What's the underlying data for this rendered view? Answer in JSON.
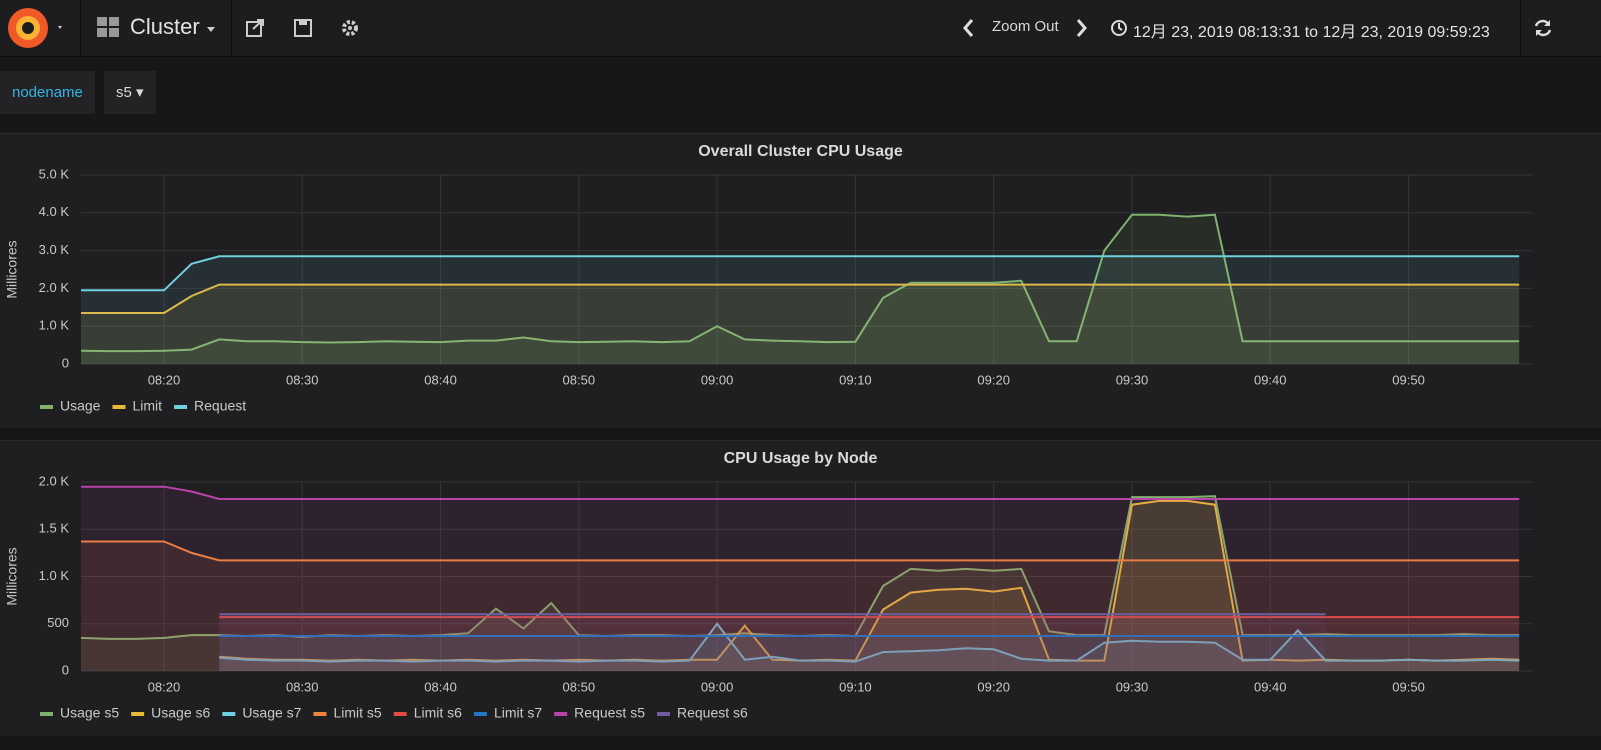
{
  "header": {
    "dashboard": "Cluster",
    "zoom": "Zoom Out",
    "time_range": "12月 23, 2019 08:13:31 to 12月 23, 2019 09:59:23"
  },
  "variables": {
    "label": "nodename",
    "value": "s5"
  },
  "chart_data": [
    {
      "type": "line",
      "title": "Overall Cluster CPU Usage",
      "ylabel": "Millicores",
      "x": [
        "08:14",
        "08:16",
        "08:18",
        "08:20",
        "08:22",
        "08:24",
        "08:26",
        "08:28",
        "08:30",
        "08:32",
        "08:34",
        "08:36",
        "08:38",
        "08:40",
        "08:42",
        "08:44",
        "08:46",
        "08:48",
        "08:50",
        "08:52",
        "08:54",
        "08:56",
        "08:58",
        "09:00",
        "09:02",
        "09:04",
        "09:06",
        "09:08",
        "09:10",
        "09:12",
        "09:14",
        "09:16",
        "09:18",
        "09:20",
        "09:22",
        "09:24",
        "09:26",
        "09:28",
        "09:30",
        "09:32",
        "09:34",
        "09:36",
        "09:38",
        "09:40",
        "09:42",
        "09:44",
        "09:46",
        "09:48",
        "09:50",
        "09:52",
        "09:54",
        "09:56",
        "09:58"
      ],
      "series": [
        {
          "name": "Usage",
          "color": "#7eb26d",
          "values": [
            350,
            340,
            340,
            350,
            380,
            650,
            600,
            600,
            580,
            570,
            580,
            600,
            590,
            580,
            620,
            620,
            700,
            600,
            580,
            590,
            600,
            580,
            600,
            1000,
            650,
            620,
            600,
            580,
            590,
            1750,
            2150,
            2150,
            2150,
            2150,
            2200,
            600,
            600,
            3000,
            3950,
            3950,
            3900,
            3950,
            600,
            600,
            600,
            600,
            600,
            600,
            600,
            600,
            600,
            600,
            600
          ]
        },
        {
          "name": "Limit",
          "color": "#eab839",
          "values": [
            1350,
            1350,
            1350,
            1350,
            1800,
            2100,
            2100,
            2100,
            2100,
            2100,
            2100,
            2100,
            2100,
            2100,
            2100,
            2100,
            2100,
            2100,
            2100,
            2100,
            2100,
            2100,
            2100,
            2100,
            2100,
            2100,
            2100,
            2100,
            2100,
            2100,
            2100,
            2100,
            2100,
            2100,
            2100,
            2100,
            2100,
            2100,
            2100,
            2100,
            2100,
            2100,
            2100,
            2100,
            2100,
            2100,
            2100,
            2100,
            2100,
            2100,
            2100,
            2100,
            2100
          ]
        },
        {
          "name": "Request",
          "color": "#6ed0e0",
          "values": [
            1950,
            1950,
            1950,
            1950,
            2650,
            2850,
            2850,
            2850,
            2850,
            2850,
            2850,
            2850,
            2850,
            2850,
            2850,
            2850,
            2850,
            2850,
            2850,
            2850,
            2850,
            2850,
            2850,
            2850,
            2850,
            2850,
            2850,
            2850,
            2850,
            2850,
            2850,
            2850,
            2850,
            2850,
            2850,
            2850,
            2850,
            2850,
            2850,
            2850,
            2850,
            2850,
            2850,
            2850,
            2850,
            2850,
            2850,
            2850,
            2850,
            2850,
            2850,
            2850,
            2850
          ]
        }
      ],
      "xlim": [
        "08:14",
        "09:59"
      ],
      "xticks": [
        "08:20",
        "08:30",
        "08:40",
        "08:50",
        "09:00",
        "09:10",
        "09:20",
        "09:30",
        "09:40",
        "09:50"
      ],
      "ylim": [
        0,
        5000
      ],
      "yticks": [
        0,
        {
          "value": 1000,
          "label": "1.0 K"
        },
        {
          "value": 2000,
          "label": "2.0 K"
        },
        {
          "value": 3000,
          "label": "3.0 K"
        },
        {
          "value": 4000,
          "label": "4.0 K"
        },
        {
          "value": 5000,
          "label": "5.0 K"
        }
      ],
      "grid": true,
      "legend": "bottom"
    },
    {
      "type": "line",
      "title": "CPU Usage by Node",
      "ylabel": "Millicores",
      "x": [
        "08:14",
        "08:16",
        "08:18",
        "08:20",
        "08:22",
        "08:24",
        "08:26",
        "08:28",
        "08:30",
        "08:32",
        "08:34",
        "08:36",
        "08:38",
        "08:40",
        "08:42",
        "08:44",
        "08:46",
        "08:48",
        "08:50",
        "08:52",
        "08:54",
        "08:56",
        "08:58",
        "09:00",
        "09:02",
        "09:04",
        "09:06",
        "09:08",
        "09:10",
        "09:12",
        "09:14",
        "09:16",
        "09:18",
        "09:20",
        "09:22",
        "09:24",
        "09:26",
        "09:28",
        "09:30",
        "09:32",
        "09:34",
        "09:36",
        "09:38",
        "09:40",
        "09:42",
        "09:44",
        "09:46",
        "09:48",
        "09:50",
        "09:52",
        "09:54",
        "09:56",
        "09:58"
      ],
      "series": [
        {
          "name": "Usage s5",
          "color": "#7eb26d",
          "values": [
            350,
            340,
            340,
            350,
            380,
            380,
            370,
            380,
            360,
            380,
            370,
            380,
            370,
            380,
            400,
            660,
            450,
            720,
            380,
            370,
            380,
            380,
            370,
            380,
            400,
            380,
            370,
            380,
            370,
            900,
            1080,
            1060,
            1080,
            1060,
            1080,
            420,
            380,
            380,
            1840,
            1840,
            1840,
            1850,
            380,
            380,
            380,
            390,
            380,
            380,
            380,
            380,
            390,
            380,
            380
          ]
        },
        {
          "name": "Usage s6",
          "color": "#eab839",
          "values": [
            null,
            null,
            null,
            null,
            null,
            150,
            130,
            120,
            120,
            110,
            120,
            110,
            120,
            110,
            120,
            110,
            120,
            110,
            120,
            110,
            120,
            110,
            120,
            120,
            480,
            120,
            110,
            120,
            110,
            650,
            830,
            860,
            870,
            840,
            880,
            120,
            110,
            110,
            1760,
            1800,
            1800,
            1760,
            110,
            120,
            110,
            120,
            110,
            110,
            120,
            110,
            120,
            130,
            120
          ]
        },
        {
          "name": "Usage s7",
          "color": "#6ed0e0",
          "values": [
            null,
            null,
            null,
            null,
            null,
            140,
            120,
            110,
            110,
            100,
            110,
            110,
            100,
            110,
            110,
            100,
            110,
            110,
            100,
            110,
            110,
            100,
            110,
            500,
            120,
            150,
            110,
            110,
            100,
            200,
            210,
            220,
            240,
            230,
            130,
            110,
            110,
            300,
            320,
            310,
            310,
            300,
            120,
            120,
            430,
            110,
            110,
            110,
            120,
            110,
            110,
            120,
            110
          ]
        },
        {
          "name": "Limit s5",
          "color": "#ef843c",
          "values": [
            1370,
            1370,
            1370,
            1370,
            1250,
            1170,
            1170,
            1170,
            1170,
            1170,
            1170,
            1170,
            1170,
            1170,
            1170,
            1170,
            1170,
            1170,
            1170,
            1170,
            1170,
            1170,
            1170,
            1170,
            1170,
            1170,
            1170,
            1170,
            1170,
            1170,
            1170,
            1170,
            1170,
            1170,
            1170,
            1170,
            1170,
            1170,
            1170,
            1170,
            1170,
            1170,
            1170,
            1170,
            1170,
            1170,
            1170,
            1170,
            1170,
            1170,
            1170,
            1170,
            1170
          ]
        },
        {
          "name": "Limit s6",
          "color": "#e24d42",
          "values": [
            null,
            null,
            null,
            null,
            null,
            570,
            570,
            570,
            570,
            570,
            570,
            570,
            570,
            570,
            570,
            570,
            570,
            570,
            570,
            570,
            570,
            570,
            570,
            570,
            570,
            570,
            570,
            570,
            570,
            570,
            570,
            570,
            570,
            570,
            570,
            570,
            570,
            570,
            570,
            570,
            570,
            570,
            570,
            570,
            570,
            570,
            570,
            570,
            570,
            570,
            570,
            570,
            570
          ]
        },
        {
          "name": "Limit s7",
          "color": "#1f78c1",
          "values": [
            null,
            null,
            null,
            null,
            null,
            370,
            370,
            370,
            370,
            370,
            370,
            370,
            370,
            370,
            370,
            370,
            370,
            370,
            370,
            370,
            370,
            370,
            370,
            370,
            370,
            370,
            370,
            370,
            370,
            370,
            370,
            370,
            370,
            370,
            370,
            370,
            370,
            370,
            370,
            370,
            370,
            370,
            370,
            370,
            370,
            370,
            370,
            370,
            370,
            370,
            370,
            370,
            370
          ]
        },
        {
          "name": "Request s5",
          "color": "#ba43a9",
          "values": [
            1950,
            1950,
            1950,
            1950,
            1900,
            1820,
            1820,
            1820,
            1820,
            1820,
            1820,
            1820,
            1820,
            1820,
            1820,
            1820,
            1820,
            1820,
            1820,
            1820,
            1820,
            1820,
            1820,
            1820,
            1820,
            1820,
            1820,
            1820,
            1820,
            1820,
            1820,
            1820,
            1820,
            1820,
            1820,
            1820,
            1820,
            1820,
            1820,
            1820,
            1820,
            1820,
            1820,
            1820,
            1820,
            1820,
            1820,
            1820,
            1820,
            1820,
            1820,
            1820,
            1820
          ]
        },
        {
          "name": "Request s6",
          "color": "#705da0",
          "values": [
            null,
            null,
            null,
            null,
            null,
            600,
            600,
            600,
            600,
            600,
            600,
            600,
            600,
            600,
            600,
            600,
            600,
            600,
            600,
            600,
            600,
            600,
            600,
            600,
            600,
            600,
            600,
            600,
            600,
            600,
            600,
            600,
            600,
            600,
            600,
            600,
            600,
            600,
            600,
            600,
            600,
            600,
            600,
            600,
            600,
            600,
            null,
            null,
            null,
            null,
            null,
            null,
            null
          ]
        }
      ],
      "xlim": [
        "08:14",
        "09:59"
      ],
      "xticks": [
        "08:20",
        "08:30",
        "08:40",
        "08:50",
        "09:00",
        "09:10",
        "09:20",
        "09:30",
        "09:40",
        "09:50"
      ],
      "ylim": [
        0,
        2000
      ],
      "yticks": [
        0,
        500,
        {
          "value": 1000,
          "label": "1.0 K"
        },
        {
          "value": 1500,
          "label": "1.5 K"
        },
        {
          "value": 2000,
          "label": "2.0 K"
        }
      ],
      "grid": true,
      "legend": "bottom"
    }
  ]
}
